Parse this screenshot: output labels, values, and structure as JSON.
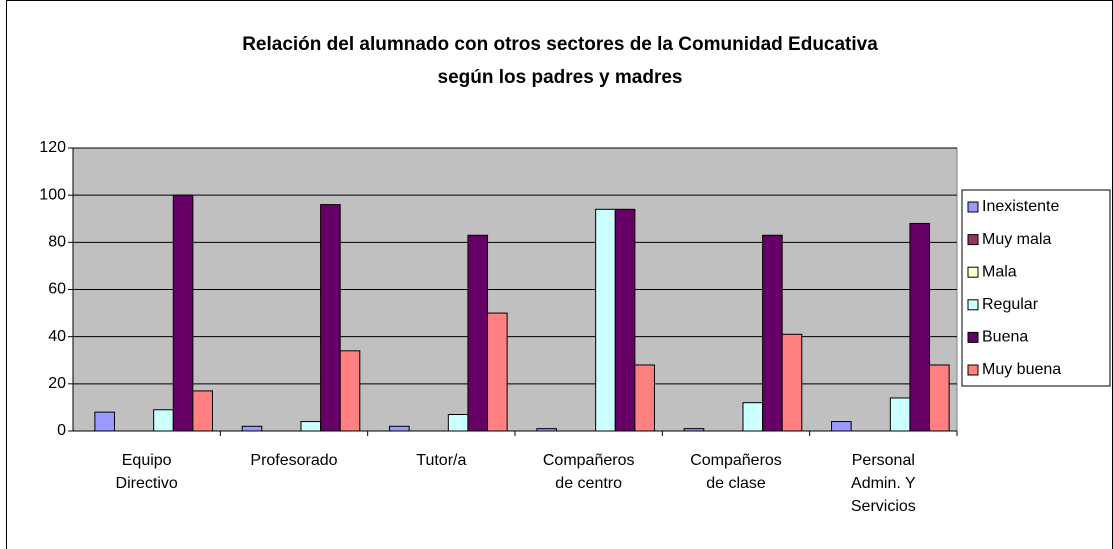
{
  "chart_data": {
    "type": "bar",
    "title": [
      "Relación del alumnado con otros sectores de la Comunidad Educativa",
      "según los padres y madres"
    ],
    "categories": [
      "Equipo Directivo",
      "Profesorado",
      "Tutor/a",
      "Compañeros de centro",
      "Compañeros de clase",
      "Personal Admin. Y Servicios"
    ],
    "series": [
      {
        "name": "Inexistente",
        "color": "#9999ff",
        "values": [
          8,
          2,
          2,
          1,
          1,
          4
        ]
      },
      {
        "name": "Muy mala",
        "color": "#993366",
        "values": [
          0,
          0,
          0,
          0,
          0,
          0
        ]
      },
      {
        "name": "Mala",
        "color": "#ffffcc",
        "values": [
          0,
          0,
          0,
          0,
          0,
          0
        ]
      },
      {
        "name": "Regular",
        "color": "#ccffff",
        "values": [
          9,
          4,
          7,
          94,
          12,
          14
        ]
      },
      {
        "name": "Buena",
        "color": "#660066",
        "values": [
          100,
          96,
          83,
          94,
          83,
          88
        ]
      },
      {
        "name": "Muy buena",
        "color": "#ff8080",
        "values": [
          17,
          34,
          50,
          28,
          41,
          28
        ]
      }
    ],
    "ylim": [
      0,
      120
    ],
    "yticks": [
      0,
      20,
      40,
      60,
      80,
      100,
      120
    ],
    "grid": true,
    "legend": "right"
  }
}
